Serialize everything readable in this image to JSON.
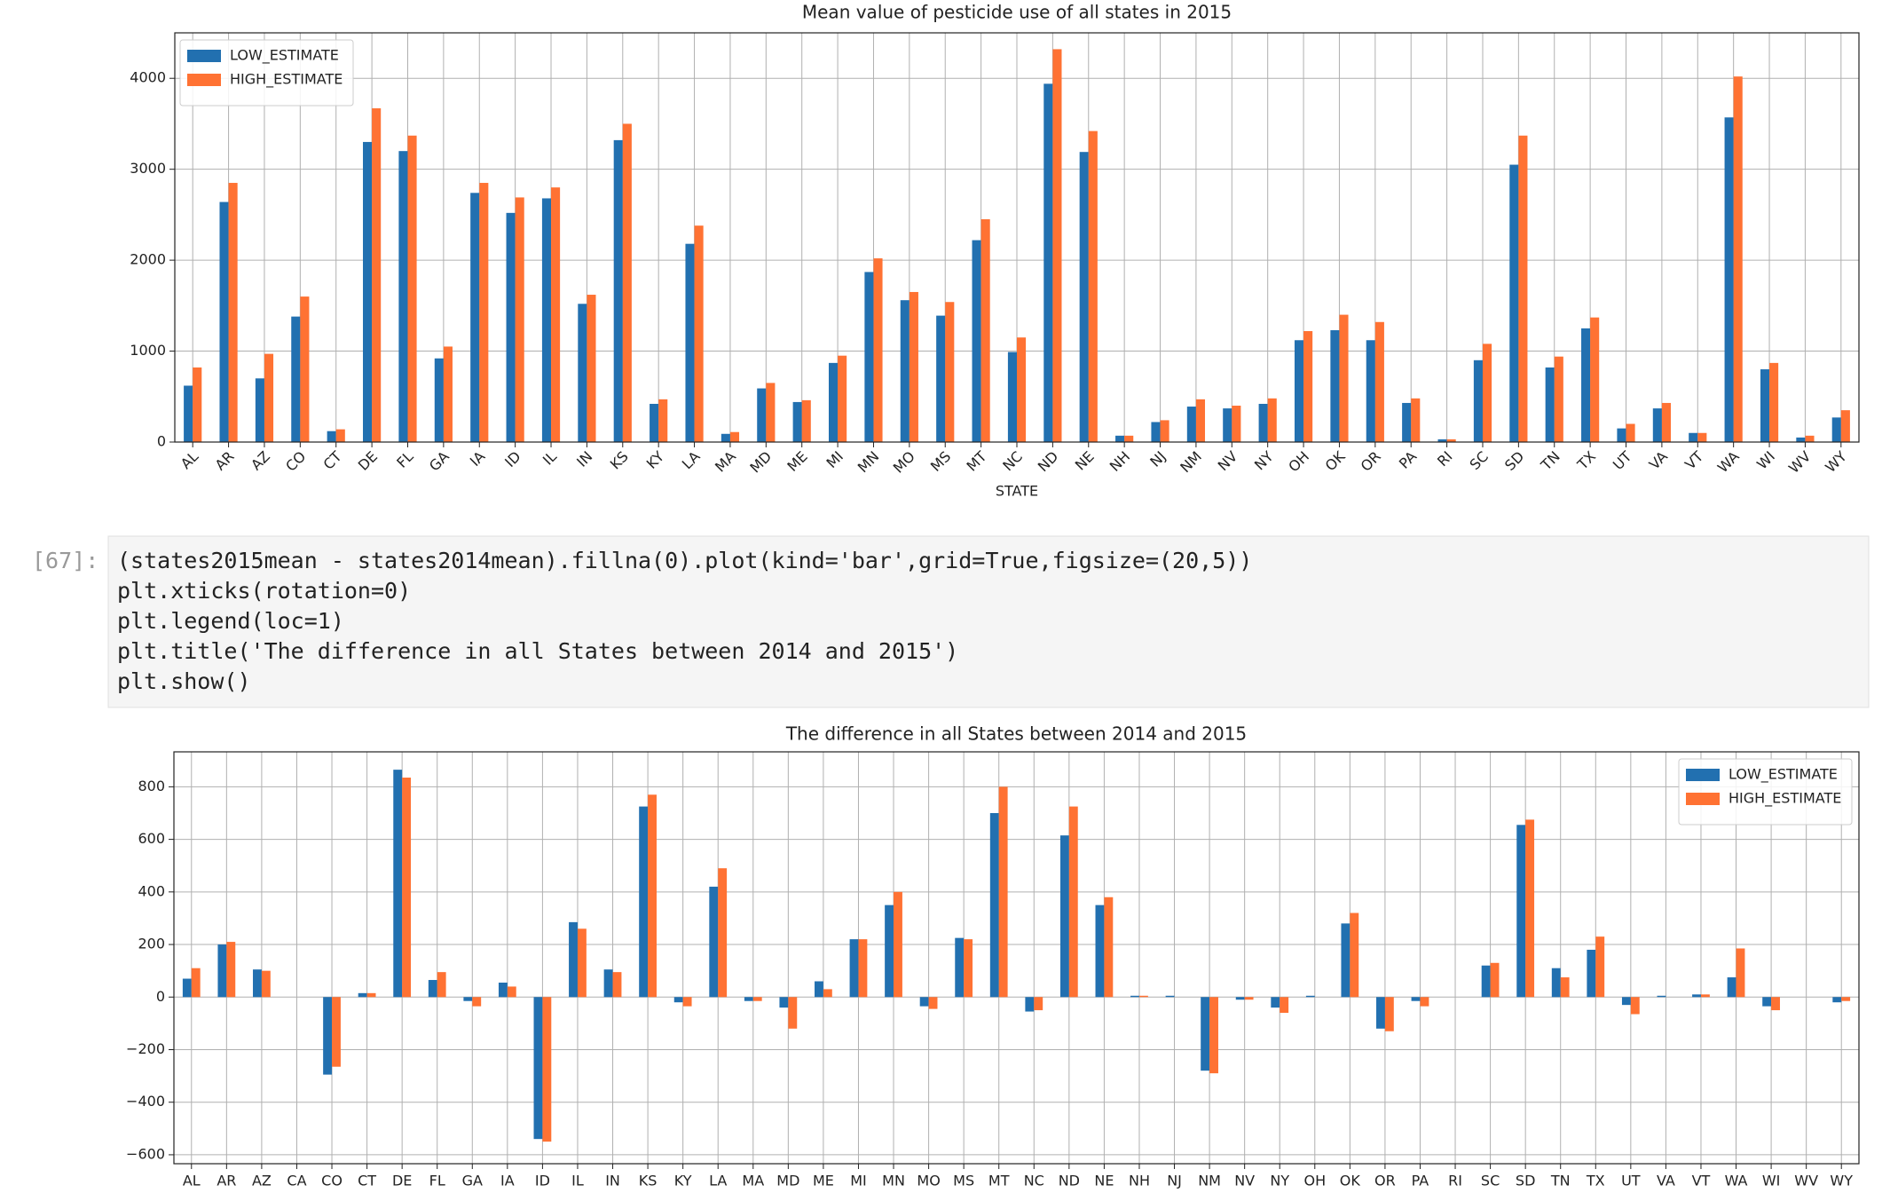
{
  "chart_data": [
    {
      "type": "bar",
      "title": "Mean value of pesticide use of all states in 2015",
      "xlabel": "STATE",
      "categories": [
        "AL",
        "AR",
        "AZ",
        "CO",
        "CT",
        "DE",
        "FL",
        "GA",
        "IA",
        "ID",
        "IL",
        "IN",
        "KS",
        "KY",
        "LA",
        "MA",
        "MD",
        "ME",
        "MI",
        "MN",
        "MO",
        "MS",
        "MT",
        "NC",
        "ND",
        "NE",
        "NH",
        "NJ",
        "NM",
        "NV",
        "NY",
        "OH",
        "OK",
        "OR",
        "PA",
        "RI",
        "SC",
        "SD",
        "TN",
        "TX",
        "UT",
        "VA",
        "VT",
        "WA",
        "WI",
        "WV",
        "WY"
      ],
      "series": [
        {
          "name": "LOW_ESTIMATE",
          "color": "#2270b0",
          "values": [
            620,
            2640,
            700,
            1380,
            120,
            3300,
            3200,
            920,
            2740,
            2520,
            2680,
            1520,
            3320,
            420,
            2180,
            90,
            590,
            440,
            870,
            1870,
            1560,
            1390,
            2220,
            990,
            3940,
            3190,
            70,
            220,
            390,
            370,
            420,
            1120,
            1230,
            1120,
            430,
            30,
            900,
            3050,
            820,
            1250,
            150,
            370,
            100,
            3570,
            800,
            50,
            270
          ]
        },
        {
          "name": "HIGH_ESTIMATE",
          "color": "#ff7233",
          "values": [
            820,
            2850,
            970,
            1600,
            140,
            3670,
            3370,
            1050,
            2850,
            2690,
            2800,
            1620,
            3500,
            470,
            2380,
            110,
            650,
            460,
            950,
            2020,
            1650,
            1540,
            2450,
            1150,
            4320,
            3420,
            70,
            240,
            470,
            400,
            480,
            1220,
            1400,
            1320,
            480,
            30,
            1080,
            3370,
            940,
            1370,
            200,
            430,
            100,
            4020,
            870,
            70,
            350
          ]
        }
      ],
      "ylim": [
        0,
        4500
      ],
      "yticks": [
        0,
        1000,
        2000,
        3000,
        4000
      ],
      "grid": true,
      "legend": "upper left",
      "xtick_rotation": 45
    },
    {
      "type": "bar",
      "title": "The difference in all States between 2014 and 2015",
      "categories": [
        "AL",
        "AR",
        "AZ",
        "CA",
        "CO",
        "CT",
        "DE",
        "FL",
        "GA",
        "IA",
        "ID",
        "IL",
        "IN",
        "KS",
        "KY",
        "LA",
        "MA",
        "MD",
        "ME",
        "MI",
        "MN",
        "MO",
        "MS",
        "MT",
        "NC",
        "ND",
        "NE",
        "NH",
        "NJ",
        "NM",
        "NV",
        "NY",
        "OH",
        "OK",
        "OR",
        "PA",
        "RI",
        "SC",
        "SD",
        "TN",
        "TX",
        "UT",
        "VA",
        "VT",
        "WA",
        "WI",
        "WV",
        "WY"
      ],
      "series": [
        {
          "name": "LOW_ESTIMATE",
          "color": "#2270b0",
          "values": [
            70,
            200,
            105,
            0,
            -295,
            15,
            865,
            65,
            -15,
            55,
            -540,
            285,
            105,
            725,
            -20,
            420,
            -15,
            -40,
            60,
            220,
            350,
            -35,
            225,
            700,
            -55,
            615,
            350,
            5,
            5,
            -280,
            -10,
            -40,
            5,
            280,
            -120,
            -15,
            0,
            120,
            655,
            110,
            180,
            -30,
            5,
            10,
            75,
            -35,
            0,
            -20
          ]
        },
        {
          "name": "HIGH_ESTIMATE",
          "color": "#ff7233",
          "values": [
            110,
            210,
            100,
            0,
            -265,
            15,
            835,
            95,
            -35,
            40,
            -550,
            260,
            95,
            770,
            -35,
            490,
            -15,
            -120,
            30,
            220,
            400,
            -45,
            220,
            800,
            -50,
            725,
            380,
            5,
            0,
            -290,
            -10,
            -60,
            0,
            320,
            -130,
            -35,
            0,
            130,
            675,
            75,
            230,
            -65,
            0,
            10,
            185,
            -50,
            0,
            -15
          ]
        }
      ],
      "ylim": [
        -634,
        933
      ],
      "yticks": [
        {
          "value": -600,
          "label": "−600"
        },
        {
          "value": -400,
          "label": "−400"
        },
        {
          "value": -200,
          "label": "−200"
        },
        0,
        200,
        400,
        600,
        800
      ],
      "grid": true,
      "legend": "upper right",
      "xtick_rotation": 0
    }
  ],
  "code_cell": {
    "prompt": "[67]:",
    "lines": [
      "(states2015mean - states2014mean).fillna(0).plot(kind='bar',grid=True,figsize=(20,5))",
      "plt.xticks(rotation=0)",
      "plt.legend(loc=1)",
      "plt.title('The difference in all States between 2014 and 2015')",
      "plt.show()"
    ]
  }
}
